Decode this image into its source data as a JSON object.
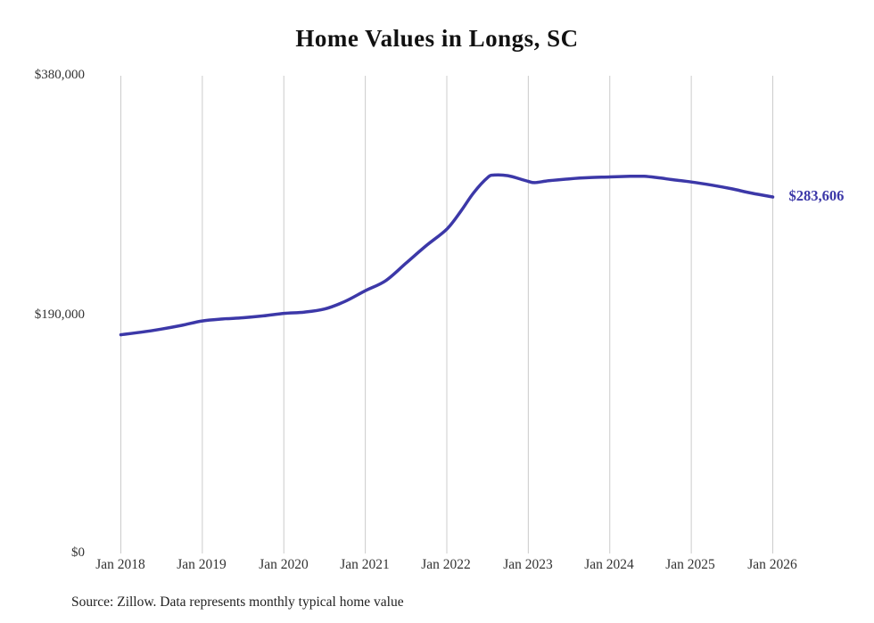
{
  "title": "Home Values in Longs, SC",
  "source_note": "Source: Zillow. Data represents monthly typical home value",
  "end_label": "$283,606",
  "colors": {
    "line": "#3c38a8",
    "grid": "#cccccc",
    "text": "#333333",
    "title": "#111111"
  },
  "chart_data": {
    "type": "line",
    "title": "Home Values in Longs, SC",
    "xlabel": "",
    "ylabel": "",
    "x_tick_labels": [
      "Jan 2018",
      "Jan 2019",
      "Jan 2020",
      "Jan 2021",
      "Jan 2022",
      "Jan 2023",
      "Jan 2024",
      "Jan 2025",
      "Jan 2026"
    ],
    "y_tick_labels": [
      "$380,000",
      "$190,000",
      "$0"
    ],
    "y_tick_values": [
      380000,
      190000,
      0
    ],
    "x_range": [
      2018,
      2026
    ],
    "y_range": [
      0,
      380000
    ],
    "grid": "vertical-only",
    "legend": "none",
    "end_value": 283606,
    "end_value_label": "$283,606",
    "series": [
      {
        "name": "Typical home value",
        "x": [
          2018.0,
          2018.25,
          2018.5,
          2018.75,
          2019.0,
          2019.25,
          2019.5,
          2019.75,
          2020.0,
          2020.25,
          2020.5,
          2020.75,
          2021.0,
          2021.25,
          2021.5,
          2021.75,
          2022.0,
          2022.17,
          2022.33,
          2022.5,
          2022.58,
          2022.75,
          2022.92,
          2023.0,
          2023.08,
          2023.25,
          2023.5,
          2023.75,
          2024.0,
          2024.25,
          2024.42,
          2024.58,
          2024.75,
          2025.0,
          2025.25,
          2025.5,
          2025.75,
          2026.0
        ],
        "values": [
          174000,
          176000,
          178500,
          181500,
          185000,
          186500,
          187500,
          189000,
          191000,
          192000,
          194500,
          200500,
          209000,
          217000,
          231000,
          245000,
          258000,
          272000,
          287000,
          299000,
          301000,
          300500,
          297500,
          296000,
          295000,
          296500,
          298000,
          299000,
          299500,
          300000,
          300000,
          299000,
          297500,
          295500,
          293000,
          290000,
          286500,
          283606
        ]
      }
    ]
  }
}
